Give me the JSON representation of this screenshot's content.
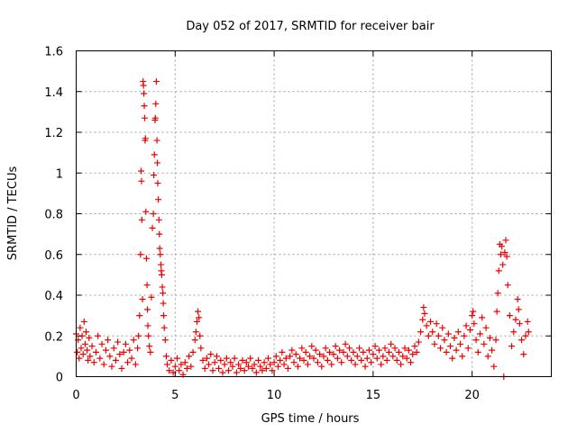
{
  "chart_data": {
    "type": "scatter",
    "title": "Day 052 of 2017, SRMTID for receiver bair",
    "xlabel": "GPS time / hours",
    "ylabel": "SRMTID / TECUs",
    "xlim": [
      0,
      24
    ],
    "ylim": [
      0,
      1.6
    ],
    "x_ticks": [
      0,
      5,
      10,
      15,
      20
    ],
    "x_tick_labels": [
      "0",
      "5",
      "10",
      "15",
      "20"
    ],
    "y_ticks": [
      0,
      0.2,
      0.4,
      0.6,
      0.8,
      1.0,
      1.2,
      1.4,
      1.6
    ],
    "y_tick_labels": [
      "0",
      "0.2",
      "0.4",
      "0.6",
      "0.8",
      "1",
      "1.2",
      "1.4",
      "1.6"
    ],
    "grid": true,
    "marker": "+",
    "series": [
      {
        "name": "SRMTID",
        "color": "#ee0000",
        "points": [
          [
            0.0,
            0.21
          ],
          [
            0.05,
            0.12
          ],
          [
            0.1,
            0.18
          ],
          [
            0.15,
            0.09
          ],
          [
            0.2,
            0.24
          ],
          [
            0.25,
            0.14
          ],
          [
            0.3,
            0.2
          ],
          [
            0.35,
            0.11
          ],
          [
            0.4,
            0.27
          ],
          [
            0.45,
            0.16
          ],
          [
            0.5,
            0.22
          ],
          [
            0.55,
            0.13
          ],
          [
            0.6,
            0.08
          ],
          [
            0.65,
            0.19
          ],
          [
            0.7,
            0.1
          ],
          [
            0.8,
            0.15
          ],
          [
            0.9,
            0.07
          ],
          [
            1.0,
            0.12
          ],
          [
            1.1,
            0.2
          ],
          [
            1.2,
            0.09
          ],
          [
            1.3,
            0.16
          ],
          [
            1.4,
            0.06
          ],
          [
            1.5,
            0.13
          ],
          [
            1.6,
            0.18
          ],
          [
            1.7,
            0.1
          ],
          [
            1.8,
            0.05
          ],
          [
            1.9,
            0.14
          ],
          [
            2.0,
            0.08
          ],
          [
            2.1,
            0.17
          ],
          [
            2.2,
            0.11
          ],
          [
            2.3,
            0.04
          ],
          [
            2.4,
            0.12
          ],
          [
            2.5,
            0.16
          ],
          [
            2.6,
            0.07
          ],
          [
            2.7,
            0.13
          ],
          [
            2.8,
            0.09
          ],
          [
            2.9,
            0.18
          ],
          [
            3.0,
            0.06
          ],
          [
            3.1,
            0.14
          ],
          [
            3.15,
            0.2
          ],
          [
            3.2,
            0.3
          ],
          [
            3.25,
            0.6
          ],
          [
            3.28,
            1.01
          ],
          [
            3.3,
            0.96
          ],
          [
            3.32,
            0.77
          ],
          [
            3.35,
            0.38
          ],
          [
            3.38,
            1.45
          ],
          [
            3.4,
            1.43
          ],
          [
            3.42,
            1.39
          ],
          [
            3.44,
            1.33
          ],
          [
            3.46,
            1.27
          ],
          [
            3.48,
            1.16
          ],
          [
            3.5,
            1.17
          ],
          [
            3.52,
            0.81
          ],
          [
            3.55,
            0.58
          ],
          [
            3.58,
            0.45
          ],
          [
            3.6,
            0.33
          ],
          [
            3.62,
            0.25
          ],
          [
            3.65,
            0.2
          ],
          [
            3.7,
            0.15
          ],
          [
            3.75,
            0.12
          ],
          [
            3.8,
            0.39
          ],
          [
            3.85,
            0.73
          ],
          [
            3.9,
            0.8
          ],
          [
            3.92,
            0.99
          ],
          [
            3.95,
            1.09
          ],
          [
            3.98,
            1.26
          ],
          [
            4.0,
            1.27
          ],
          [
            4.02,
            1.34
          ],
          [
            4.05,
            1.45
          ],
          [
            4.08,
            1.16
          ],
          [
            4.1,
            1.05
          ],
          [
            4.12,
            0.95
          ],
          [
            4.15,
            0.87
          ],
          [
            4.18,
            0.77
          ],
          [
            4.2,
            0.7
          ],
          [
            4.22,
            0.63
          ],
          [
            4.25,
            0.6
          ],
          [
            4.28,
            0.55
          ],
          [
            4.3,
            0.52
          ],
          [
            4.32,
            0.5
          ],
          [
            4.35,
            0.44
          ],
          [
            4.38,
            0.41
          ],
          [
            4.4,
            0.36
          ],
          [
            4.42,
            0.3
          ],
          [
            4.45,
            0.24
          ],
          [
            4.5,
            0.18
          ],
          [
            4.55,
            0.1
          ],
          [
            4.6,
            0.06
          ],
          [
            4.7,
            0.03
          ],
          [
            4.8,
            0.08
          ],
          [
            4.9,
            0.02
          ],
          [
            5.0,
            0.05
          ],
          [
            5.1,
            0.09
          ],
          [
            5.2,
            0.03
          ],
          [
            5.3,
            0.06
          ],
          [
            5.4,
            0.01
          ],
          [
            5.5,
            0.07
          ],
          [
            5.6,
            0.04
          ],
          [
            5.7,
            0.1
          ],
          [
            5.8,
            0.05
          ],
          [
            5.9,
            0.12
          ],
          [
            6.0,
            0.18
          ],
          [
            6.05,
            0.22
          ],
          [
            6.1,
            0.27
          ],
          [
            6.15,
            0.32
          ],
          [
            6.2,
            0.29
          ],
          [
            6.25,
            0.2
          ],
          [
            6.3,
            0.14
          ],
          [
            6.4,
            0.08
          ],
          [
            6.5,
            0.04
          ],
          [
            6.6,
            0.09
          ],
          [
            6.7,
            0.06
          ],
          [
            6.8,
            0.11
          ],
          [
            6.9,
            0.03
          ],
          [
            7.0,
            0.07
          ],
          [
            7.1,
            0.1
          ],
          [
            7.2,
            0.04
          ],
          [
            7.3,
            0.08
          ],
          [
            7.4,
            0.02
          ],
          [
            7.5,
            0.06
          ],
          [
            7.6,
            0.09
          ],
          [
            7.7,
            0.03
          ],
          [
            7.8,
            0.07
          ],
          [
            7.9,
            0.05
          ],
          [
            8.0,
            0.09
          ],
          [
            8.1,
            0.02
          ],
          [
            8.2,
            0.06
          ],
          [
            8.3,
            0.04
          ],
          [
            8.4,
            0.08
          ],
          [
            8.5,
            0.03
          ],
          [
            8.6,
            0.07
          ],
          [
            8.7,
            0.05
          ],
          [
            8.8,
            0.09
          ],
          [
            8.9,
            0.04
          ],
          [
            9.0,
            0.06
          ],
          [
            9.1,
            0.02
          ],
          [
            9.2,
            0.08
          ],
          [
            9.3,
            0.05
          ],
          [
            9.4,
            0.03
          ],
          [
            9.5,
            0.07
          ],
          [
            9.6,
            0.04
          ],
          [
            9.7,
            0.09
          ],
          [
            9.8,
            0.06
          ],
          [
            9.9,
            0.03
          ],
          [
            10.0,
            0.07
          ],
          [
            10.1,
            0.1
          ],
          [
            10.2,
            0.05
          ],
          [
            10.3,
            0.08
          ],
          [
            10.4,
            0.12
          ],
          [
            10.5,
            0.06
          ],
          [
            10.6,
            0.09
          ],
          [
            10.7,
            0.04
          ],
          [
            10.8,
            0.1
          ],
          [
            10.9,
            0.13
          ],
          [
            11.0,
            0.07
          ],
          [
            11.1,
            0.11
          ],
          [
            11.2,
            0.05
          ],
          [
            11.3,
            0.09
          ],
          [
            11.4,
            0.14
          ],
          [
            11.5,
            0.08
          ],
          [
            11.6,
            0.12
          ],
          [
            11.7,
            0.06
          ],
          [
            11.8,
            0.1
          ],
          [
            11.9,
            0.15
          ],
          [
            12.0,
            0.09
          ],
          [
            12.1,
            0.13
          ],
          [
            12.2,
            0.07
          ],
          [
            12.3,
            0.11
          ],
          [
            12.4,
            0.05
          ],
          [
            12.5,
            0.1
          ],
          [
            12.6,
            0.14
          ],
          [
            12.7,
            0.08
          ],
          [
            12.8,
            0.12
          ],
          [
            12.9,
            0.06
          ],
          [
            13.0,
            0.11
          ],
          [
            13.1,
            0.15
          ],
          [
            13.2,
            0.09
          ],
          [
            13.3,
            0.13
          ],
          [
            13.4,
            0.07
          ],
          [
            13.5,
            0.12
          ],
          [
            13.6,
            0.16
          ],
          [
            13.7,
            0.1
          ],
          [
            13.8,
            0.14
          ],
          [
            13.9,
            0.08
          ],
          [
            14.0,
            0.12
          ],
          [
            14.1,
            0.06
          ],
          [
            14.2,
            0.1
          ],
          [
            14.3,
            0.14
          ],
          [
            14.4,
            0.08
          ],
          [
            14.5,
            0.12
          ],
          [
            14.6,
            0.05
          ],
          [
            14.7,
            0.09
          ],
          [
            14.8,
            0.13
          ],
          [
            14.9,
            0.07
          ],
          [
            15.0,
            0.11
          ],
          [
            15.1,
            0.15
          ],
          [
            15.2,
            0.09
          ],
          [
            15.3,
            0.13
          ],
          [
            15.4,
            0.06
          ],
          [
            15.5,
            0.1
          ],
          [
            15.6,
            0.14
          ],
          [
            15.7,
            0.08
          ],
          [
            15.8,
            0.12
          ],
          [
            15.9,
            0.16
          ],
          [
            16.0,
            0.1
          ],
          [
            16.1,
            0.14
          ],
          [
            16.2,
            0.08
          ],
          [
            16.3,
            0.12
          ],
          [
            16.4,
            0.06
          ],
          [
            16.5,
            0.1
          ],
          [
            16.6,
            0.14
          ],
          [
            16.7,
            0.09
          ],
          [
            16.8,
            0.13
          ],
          [
            16.9,
            0.07
          ],
          [
            17.0,
            0.11
          ],
          [
            17.1,
            0.15
          ],
          [
            17.2,
            0.12
          ],
          [
            17.3,
            0.17
          ],
          [
            17.4,
            0.22
          ],
          [
            17.5,
            0.28
          ],
          [
            17.55,
            0.34
          ],
          [
            17.6,
            0.31
          ],
          [
            17.7,
            0.25
          ],
          [
            17.8,
            0.2
          ],
          [
            17.9,
            0.27
          ],
          [
            18.0,
            0.22
          ],
          [
            18.1,
            0.16
          ],
          [
            18.2,
            0.26
          ],
          [
            18.3,
            0.2
          ],
          [
            18.4,
            0.14
          ],
          [
            18.5,
            0.24
          ],
          [
            18.6,
            0.18
          ],
          [
            18.7,
            0.12
          ],
          [
            18.8,
            0.21
          ],
          [
            18.9,
            0.15
          ],
          [
            19.0,
            0.09
          ],
          [
            19.1,
            0.19
          ],
          [
            19.2,
            0.13
          ],
          [
            19.3,
            0.22
          ],
          [
            19.4,
            0.16
          ],
          [
            19.5,
            0.1
          ],
          [
            19.6,
            0.2
          ],
          [
            19.7,
            0.25
          ],
          [
            19.8,
            0.14
          ],
          [
            19.9,
            0.23
          ],
          [
            20.0,
            0.3
          ],
          [
            20.05,
            0.32
          ],
          [
            20.1,
            0.26
          ],
          [
            20.2,
            0.18
          ],
          [
            20.3,
            0.12
          ],
          [
            20.4,
            0.21
          ],
          [
            20.5,
            0.29
          ],
          [
            20.6,
            0.16
          ],
          [
            20.7,
            0.24
          ],
          [
            20.8,
            0.1
          ],
          [
            20.9,
            0.19
          ],
          [
            21.0,
            0.13
          ],
          [
            21.1,
            0.05
          ],
          [
            21.2,
            0.18
          ],
          [
            21.25,
            0.32
          ],
          [
            21.3,
            0.41
          ],
          [
            21.35,
            0.52
          ],
          [
            21.4,
            0.65
          ],
          [
            21.45,
            0.6
          ],
          [
            21.5,
            0.64
          ],
          [
            21.55,
            0.55
          ],
          [
            21.6,
            0.0
          ],
          [
            21.65,
            0.61
          ],
          [
            21.7,
            0.67
          ],
          [
            21.75,
            0.59
          ],
          [
            21.8,
            0.45
          ],
          [
            21.9,
            0.3
          ],
          [
            22.0,
            0.15
          ],
          [
            22.1,
            0.22
          ],
          [
            22.2,
            0.28
          ],
          [
            22.3,
            0.38
          ],
          [
            22.35,
            0.33
          ],
          [
            22.4,
            0.26
          ],
          [
            22.5,
            0.18
          ],
          [
            22.6,
            0.11
          ],
          [
            22.7,
            0.2
          ],
          [
            22.8,
            0.27
          ],
          [
            22.85,
            0.22
          ]
        ]
      }
    ]
  }
}
